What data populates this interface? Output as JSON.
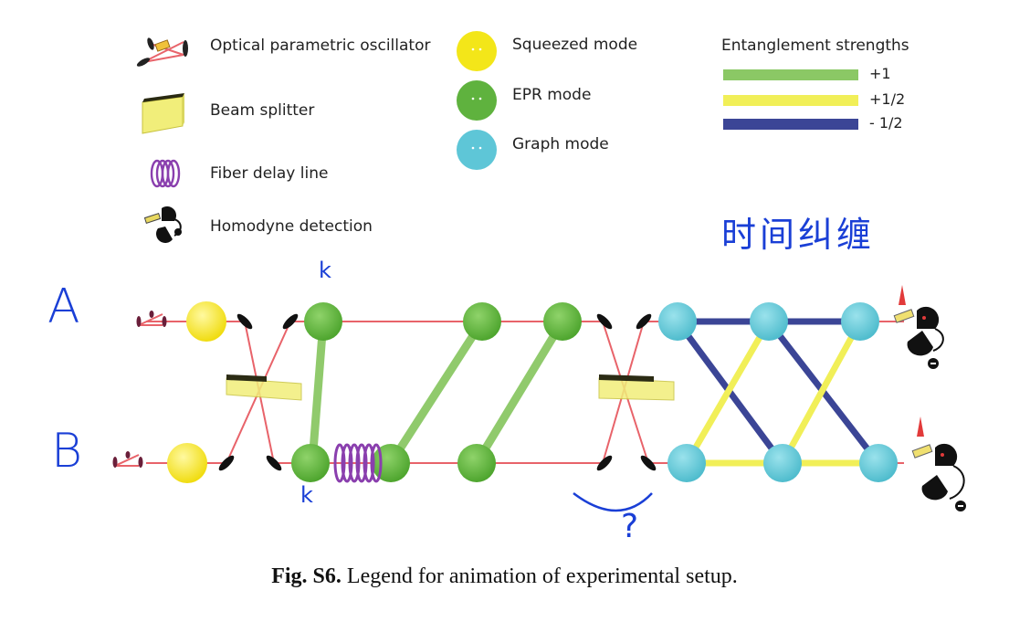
{
  "legend": {
    "opo": "Optical parametric oscillator",
    "beam_splitter": "Beam splitter",
    "fiber_delay": "Fiber delay line",
    "homodyne": "Homodyne detection",
    "squeezed": "Squeezed mode",
    "epr": "EPR mode",
    "graph": "Graph mode"
  },
  "strengths": {
    "title": "Entanglement strengths",
    "items": [
      {
        "label": "+1",
        "color": "#8bc865"
      },
      {
        "label": "+1/2",
        "color": "#f1ef58"
      },
      {
        "label": "- 1/2",
        "color": "#3b4596"
      }
    ]
  },
  "annotations": {
    "label_a": "A",
    "label_b": "B",
    "k_top": "k",
    "k_bottom": "k",
    "chinese": "时间纠缠",
    "question": "?"
  },
  "caption": {
    "prefix": "Fig. S6.",
    "text": " Legend for animation of experimental setup."
  },
  "colors": {
    "squeezed": "#f3e619",
    "epr": "#5fb23e",
    "graph": "#5ec6d7",
    "beam": "#e8636a",
    "fiber": "#8a3fae"
  }
}
